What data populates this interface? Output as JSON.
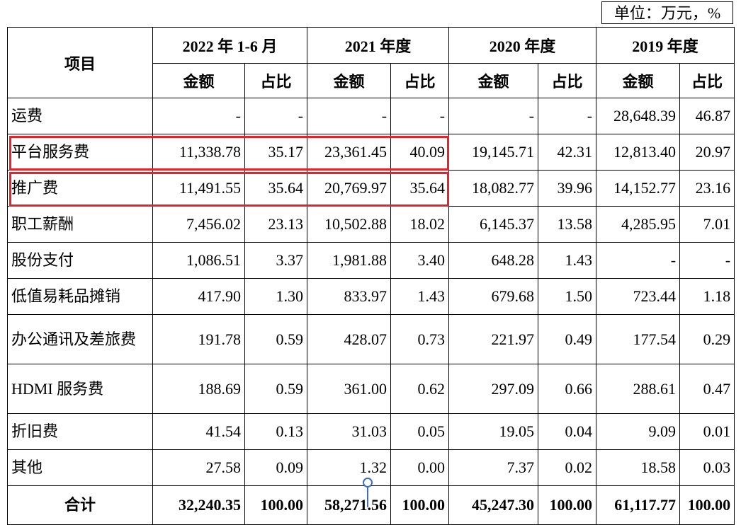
{
  "unit_label": "单位：万元，%",
  "header": {
    "item": "项目",
    "periods": [
      "2022 年 1-6 月",
      "2021 年度",
      "2020 年度",
      "2019 年度"
    ],
    "amount": "金额",
    "ratio": "占比"
  },
  "rows": [
    {
      "label": "运费",
      "values": [
        "-",
        "-",
        "-",
        "-",
        "-",
        "-",
        "28,648.39",
        "46.87"
      ]
    },
    {
      "label": "平台服务费",
      "values": [
        "11,338.78",
        "35.17",
        "23,361.45",
        "40.09",
        "19,145.71",
        "42.31",
        "12,813.40",
        "20.97"
      ]
    },
    {
      "label": "推广费",
      "values": [
        "11,491.55",
        "35.64",
        "20,769.97",
        "35.64",
        "18,082.77",
        "39.96",
        "14,152.77",
        "23.16"
      ]
    },
    {
      "label": "职工薪酬",
      "values": [
        "7,456.02",
        "23.13",
        "10,502.88",
        "18.02",
        "6,145.37",
        "13.58",
        "4,285.95",
        "7.01"
      ]
    },
    {
      "label": "股份支付",
      "values": [
        "1,086.51",
        "3.37",
        "1,981.88",
        "3.40",
        "648.28",
        "1.43",
        "-",
        "-"
      ]
    },
    {
      "label": "低值易耗品摊销",
      "values": [
        "417.90",
        "1.30",
        "833.97",
        "1.43",
        "679.68",
        "1.50",
        "723.44",
        "1.18"
      ]
    },
    {
      "label": "办公通讯及差旅费",
      "values": [
        "191.78",
        "0.59",
        "428.07",
        "0.73",
        "221.97",
        "0.49",
        "177.54",
        "0.29"
      ]
    },
    {
      "label": "HDMI 服务费",
      "values": [
        "188.69",
        "0.59",
        "361.00",
        "0.62",
        "297.09",
        "0.66",
        "288.61",
        "0.47"
      ]
    },
    {
      "label": "折旧费",
      "values": [
        "41.54",
        "0.13",
        "31.03",
        "0.05",
        "19.05",
        "0.04",
        "9.09",
        "0.01"
      ]
    },
    {
      "label": "其他",
      "values": [
        "27.58",
        "0.09",
        "1.32",
        "0.00",
        "7.37",
        "0.02",
        "18.58",
        "0.03"
      ]
    }
  ],
  "total": {
    "label": "合计",
    "values": [
      "32,240.35",
      "100.00",
      "58,271.56",
      "100.00",
      "45,247.30",
      "100.00",
      "61,117.77",
      "100.00"
    ]
  },
  "highlight_color": "#e8222a"
}
